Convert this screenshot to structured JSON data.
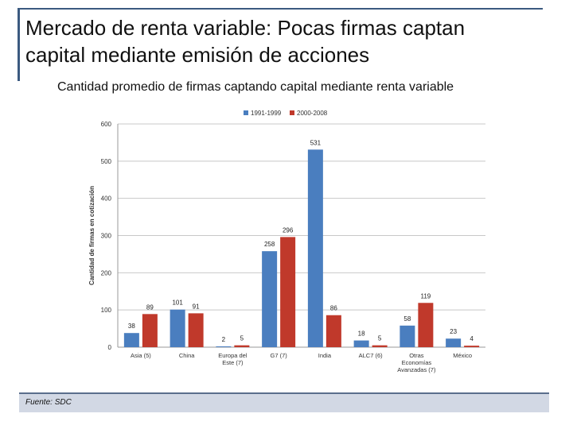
{
  "slide": {
    "title_line1": "Mercado de renta variable: Pocas firmas captan",
    "title_line2": "capital mediante emisión de acciones",
    "subtitle": "Cantidad promedio de firmas captando capital mediante renta variable",
    "source": "Fuente: SDC"
  },
  "chart_data": {
    "type": "bar",
    "title": "",
    "ylabel": "Cantidad de firmas en cotización",
    "xlabel": "",
    "ylim": [
      0,
      600
    ],
    "yticks": [
      0,
      100,
      200,
      300,
      400,
      500,
      600
    ],
    "grid": true,
    "legend_position": "top",
    "categories": [
      [
        "Asia (5)"
      ],
      [
        "China"
      ],
      [
        "Europa del",
        "Este (7)"
      ],
      [
        "G7 (7)"
      ],
      [
        "India"
      ],
      [
        "ALC7 (6)"
      ],
      [
        "Otras",
        "Economías",
        "Avanzadas (7)"
      ],
      [
        "México"
      ]
    ],
    "series": [
      {
        "name": "1991-1999",
        "color": "#4a7ebf",
        "values": [
          38,
          101,
          2,
          258,
          531,
          18,
          58,
          23
        ]
      },
      {
        "name": "2000-2008",
        "color": "#c0392b",
        "values": [
          89,
          91,
          5,
          296,
          86,
          5,
          119,
          4
        ]
      }
    ]
  }
}
